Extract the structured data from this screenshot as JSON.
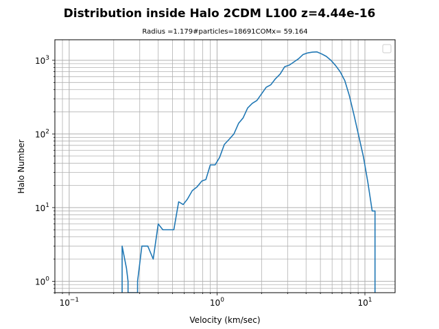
{
  "chart_data": {
    "type": "line",
    "title": "Distribution inside Halo 2CDM L100 z=4.44e-16",
    "subtitle": "Radius =1.179#particles=18691COMx= 59.164",
    "xlabel": "Velocity (km/sec)",
    "ylabel": "Halo Number",
    "xscale": "log",
    "yscale": "log",
    "xlim": [
      0.08,
      16
    ],
    "ylim": [
      0.7,
      1900
    ],
    "grid": true,
    "grid_minor": true,
    "legend": "top-right",
    "line_color": "#1f77b4",
    "x_ticks": [
      {
        "base": "10",
        "exp": "−1",
        "value": 0.1
      },
      {
        "base": "10",
        "exp": "0",
        "value": 1
      },
      {
        "base": "10",
        "exp": "1",
        "value": 10
      }
    ],
    "y_ticks": [
      {
        "base": "10",
        "exp": "0",
        "value": 1
      },
      {
        "base": "10",
        "exp": "1",
        "value": 10
      },
      {
        "base": "10",
        "exp": "2",
        "value": 100
      },
      {
        "base": "10",
        "exp": "3",
        "value": 1000
      }
    ],
    "series": [
      {
        "x": [
          0.228,
          0.228,
          0.244,
          0.25,
          0.25,
          0.29,
          0.29,
          0.31,
          0.34,
          0.37,
          0.4,
          0.43,
          0.47,
          0.51,
          0.55,
          0.59,
          0.63,
          0.68,
          0.73,
          0.79,
          0.84,
          0.9,
          0.97,
          1.04,
          1.12,
          1.21,
          1.3,
          1.4,
          1.5,
          1.61,
          1.73,
          1.86,
          2.0,
          2.15,
          2.31,
          2.48,
          2.67,
          2.87,
          3.08,
          3.31,
          3.56,
          3.82,
          4.11,
          4.41,
          4.74,
          5.1,
          5.48,
          5.89,
          6.33,
          6.8,
          7.31,
          7.85,
          8.44,
          9.07,
          9.75,
          10.47,
          11.2,
          11.7,
          11.7
        ],
        "y": [
          0.7,
          3.0,
          1.5,
          1.0,
          0.7,
          0.7,
          1.0,
          3.0,
          3.0,
          2.0,
          6.0,
          5.0,
          5.0,
          5.0,
          12.0,
          11.0,
          13.0,
          17.0,
          19.0,
          23.0,
          24.0,
          38.0,
          38.0,
          48.0,
          72.0,
          85.0,
          100.0,
          140.0,
          165.0,
          225.0,
          260.0,
          285.0,
          350.0,
          430.0,
          465.0,
          560.0,
          650.0,
          820.0,
          860.0,
          950.0,
          1050.0,
          1200.0,
          1260.0,
          1290.0,
          1300.0,
          1220.0,
          1130.0,
          1000.0,
          850.0,
          700.0,
          530.0,
          330.0,
          180.0,
          95.0,
          50.0,
          22.0,
          9.0,
          9.0,
          0.7
        ]
      }
    ]
  }
}
